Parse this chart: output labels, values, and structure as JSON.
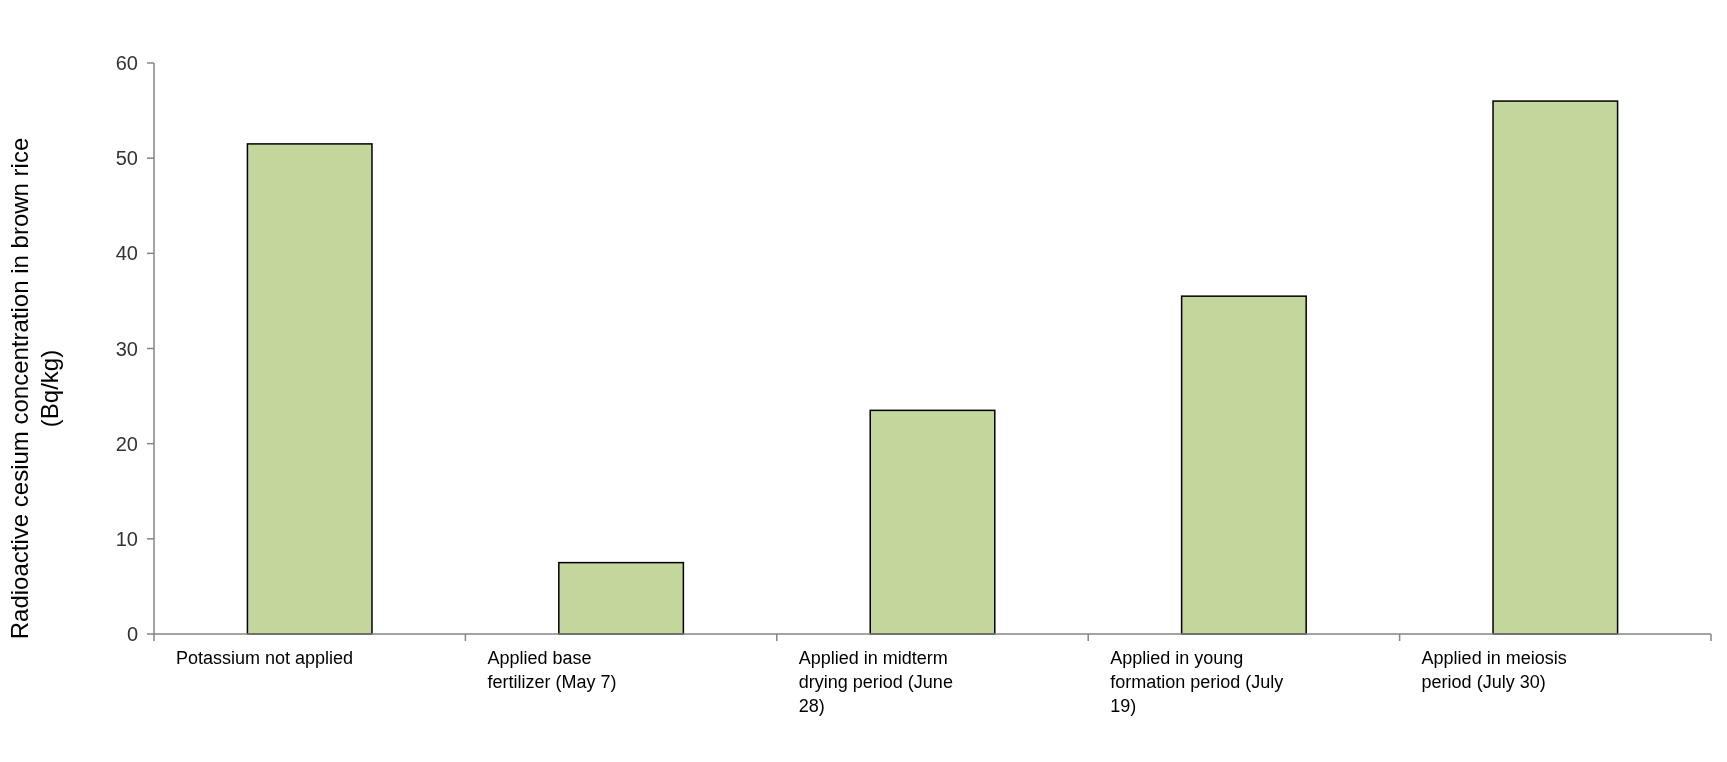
{
  "chart_data": {
    "type": "bar",
    "ylabel": "Radioactive cesium concentration in brown rice (Bq/kg)",
    "categories": [
      "Potassium not applied",
      "Applied base fertilizer (May 7)",
      "Applied in midterm drying period (June 28)",
      "Applied in young formation period (July 19)",
      "Applied in meiosis period (July 30)"
    ],
    "values": [
      51.5,
      7.5,
      23.5,
      35.5,
      56
    ],
    "color": "#c3d69b",
    "ylim": [
      0,
      60
    ],
    "yticks": [
      0,
      10,
      20,
      30,
      40,
      50,
      60
    ],
    "grid": false
  }
}
